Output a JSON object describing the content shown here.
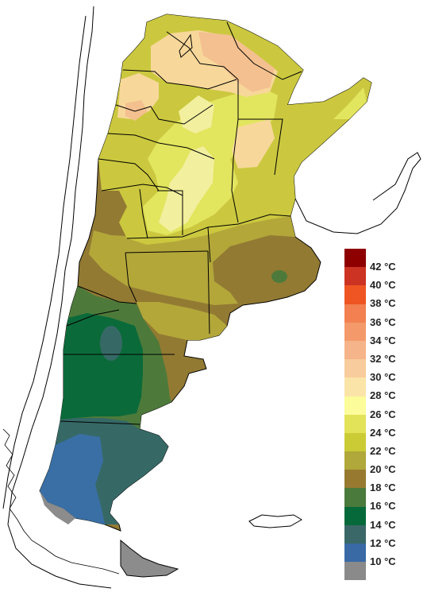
{
  "map": {
    "colors": {
      "sea": "#ffffff",
      "outline": "#000000",
      "t10": "#8c8c8c",
      "t12": "#3a6fa5",
      "t14": "#366966",
      "t16": "#0b6a3a",
      "t18": "#4d7a3a",
      "t20": "#927a33",
      "t22": "#b3a73a",
      "t24": "#cbc83f",
      "t26": "#e2e55e",
      "t28": "#f2ef9e",
      "t30": "#f7d89a",
      "t32": "#f4c08f"
    }
  },
  "legend": {
    "items": [
      {
        "label": "42 °C",
        "color": "#8e0000"
      },
      {
        "label": "40 °C",
        "color": "#cc3322"
      },
      {
        "label": "38 °C",
        "color": "#ee5522"
      },
      {
        "label": "36 °C",
        "color": "#f28050"
      },
      {
        "label": "34 °C",
        "color": "#f49a6a"
      },
      {
        "label": "32 °C",
        "color": "#f6b48a"
      },
      {
        "label": "30 °C",
        "color": "#f8cc9c"
      },
      {
        "label": "28 °C",
        "color": "#fbe4a8"
      },
      {
        "label": "26 °C",
        "color": "#fcfc9a"
      },
      {
        "label": "24 °C",
        "color": "#e3e35a"
      },
      {
        "label": "22 °C",
        "color": "#cbcb36"
      },
      {
        "label": "20 °C",
        "color": "#b0a83a"
      },
      {
        "label": "18 °C",
        "color": "#977a30"
      },
      {
        "label": "16 °C",
        "color": "#4a7a3c"
      },
      {
        "label": "14 °C",
        "color": "#05693a"
      },
      {
        "label": "12 °C",
        "color": "#3a6868"
      },
      {
        "label": "10 °C",
        "color": "#3a6aa5"
      },
      {
        "label": "",
        "color": "#8a8a8a"
      }
    ]
  }
}
